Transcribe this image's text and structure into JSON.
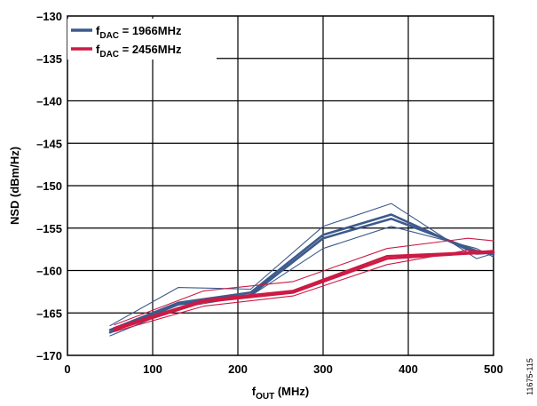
{
  "chart_data": {
    "type": "line",
    "title": "",
    "xlabel": {
      "main": "f",
      "sub": "OUT",
      "unit": " (MHz)"
    },
    "ylabel": "NSD (dBm/Hz)",
    "xlim": [
      0,
      500
    ],
    "ylim": [
      -170,
      -130
    ],
    "x_ticks": [
      0,
      100,
      200,
      300,
      400,
      500
    ],
    "x_tick_labels": [
      "0",
      "100",
      "200",
      "300",
      "400",
      "500"
    ],
    "y_ticks": [
      -170,
      -165,
      -160,
      -155,
      -150,
      -145,
      -140,
      -135,
      -130
    ],
    "y_tick_labels": [
      "–170",
      "–165",
      "–160",
      "–155",
      "–150",
      "–145",
      "–140",
      "–135",
      "–130"
    ],
    "grid": true,
    "legend_position": "top-left",
    "figure_id": "11675-115",
    "series": [
      {
        "legend_main": "f",
        "legend_sub": "DAC",
        "legend_rest": " = 1966MHz",
        "color": "#3d5a8c",
        "lines": [
          {
            "weight": "heavy",
            "x": [
              50,
              130,
              215,
              300,
              380,
              480,
              500
            ],
            "y": [
              -167.0,
              -163.8,
              -162.6,
              -155.8,
              -153.4,
              -158.0,
              -157.9
            ]
          },
          {
            "weight": "heavy",
            "x": [
              50,
              130,
              215,
              300,
              380,
              480,
              500
            ],
            "y": [
              -167.3,
              -164.0,
              -162.9,
              -156.2,
              -153.9,
              -157.7,
              -158.1
            ]
          },
          {
            "weight": "thin",
            "x": [
              50,
              130,
              215,
              300,
              380,
              480,
              500
            ],
            "y": [
              -166.5,
              -162.0,
              -162.2,
              -154.8,
              -152.1,
              -158.6,
              -158.0
            ]
          },
          {
            "weight": "thin",
            "x": [
              50,
              130,
              215,
              300,
              380,
              480,
              500
            ],
            "y": [
              -167.7,
              -164.4,
              -163.0,
              -157.4,
              -154.8,
              -157.4,
              -158.4
            ]
          }
        ]
      },
      {
        "legend_main": "f",
        "legend_sub": "DAC",
        "legend_rest": " = 2456MHz",
        "color": "#cc1a44",
        "lines": [
          {
            "weight": "heavy",
            "x": [
              55,
              160,
              265,
              375,
              470,
              500
            ],
            "y": [
              -166.8,
              -163.5,
              -162.4,
              -158.3,
              -157.9,
              -157.7
            ]
          },
          {
            "weight": "heavy",
            "x": [
              55,
              160,
              265,
              375,
              470,
              500
            ],
            "y": [
              -167.0,
              -163.7,
              -162.6,
              -158.6,
              -158.0,
              -157.9
            ]
          },
          {
            "weight": "thin",
            "x": [
              55,
              160,
              265,
              375,
              470,
              500
            ],
            "y": [
              -166.4,
              -162.4,
              -161.3,
              -157.4,
              -156.2,
              -156.5
            ]
          },
          {
            "weight": "thin",
            "x": [
              55,
              160,
              265,
              375,
              470,
              500
            ],
            "y": [
              -167.2,
              -164.2,
              -163.0,
              -159.3,
              -157.6,
              -157.8
            ]
          }
        ]
      }
    ]
  }
}
